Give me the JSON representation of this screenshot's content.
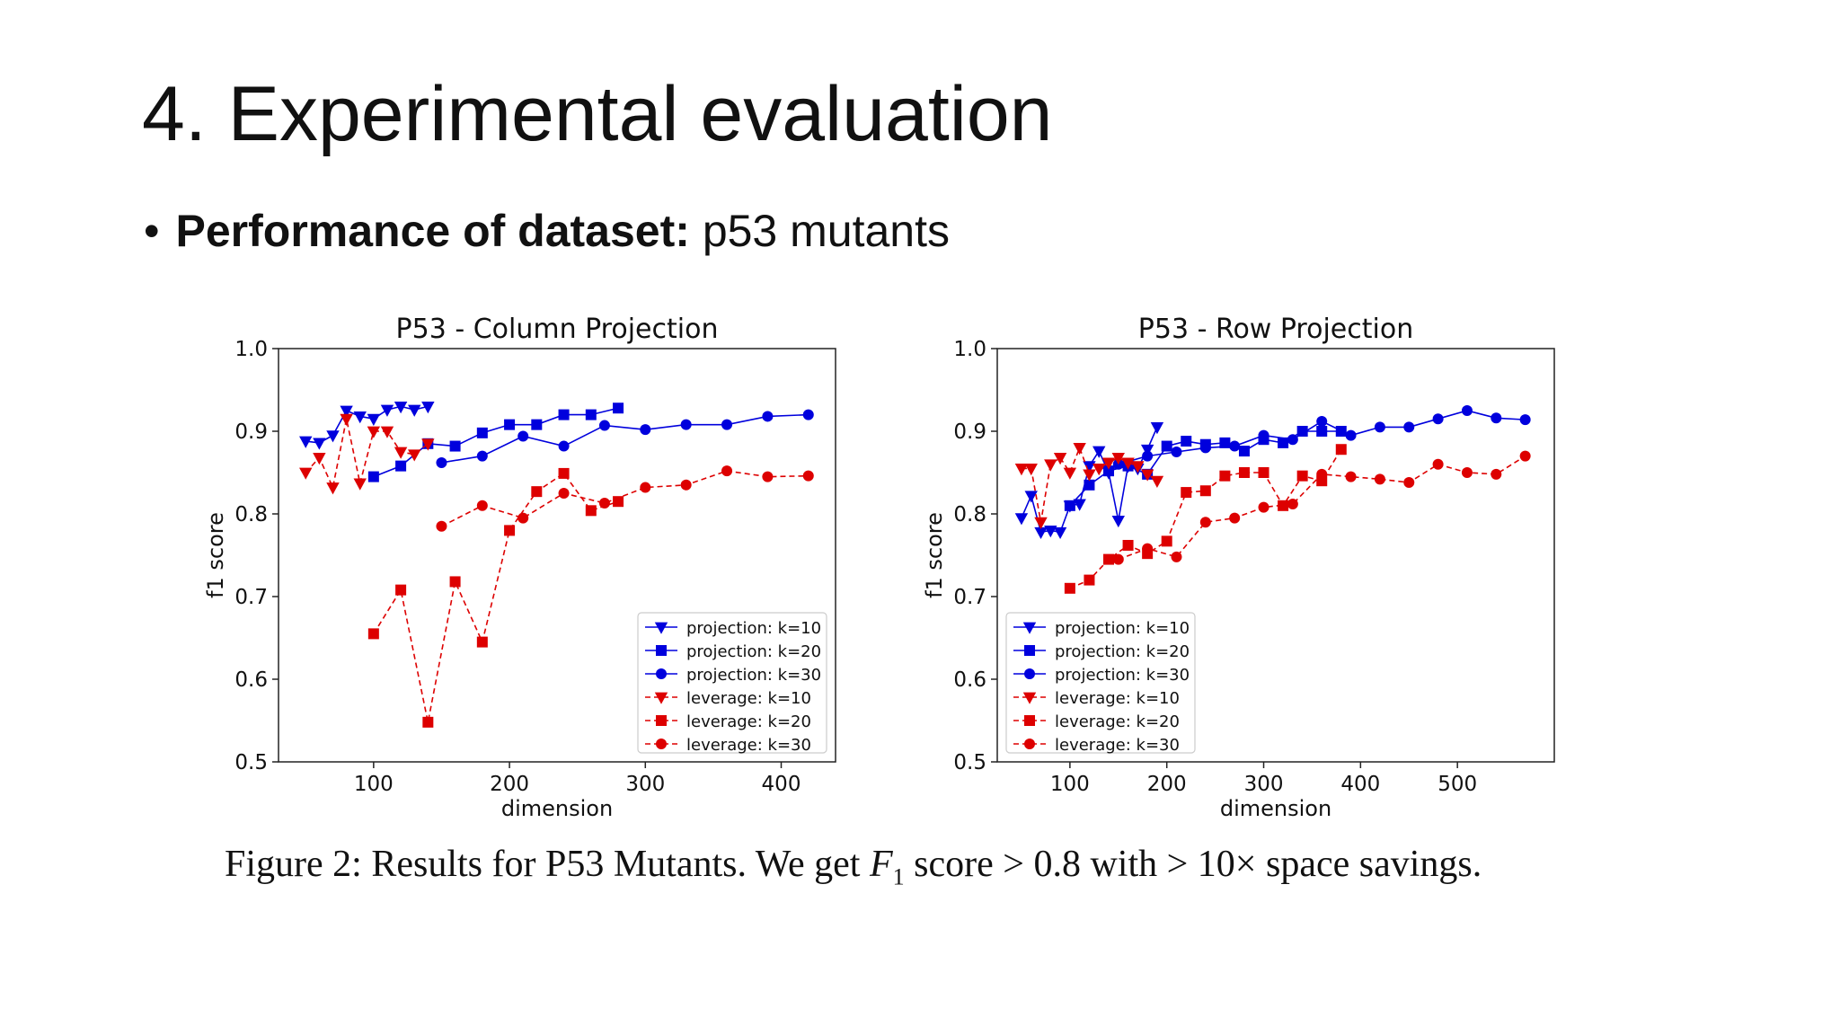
{
  "slide": {
    "title": "4. Experimental evaluation",
    "bullet_bold": "Performance of dataset:",
    "bullet_text": "p53 mutants"
  },
  "caption": {
    "lead": "Figure 2: Results for P53 Mutants. We get",
    "f_sym": "F",
    "f_sub": "1",
    "mid": "score > 0.8 with > 10× space savings."
  },
  "colors": {
    "projection": "#0000dd",
    "leverage": "#dd0000"
  },
  "chart_data": [
    {
      "type": "line",
      "title": "P53 - Column Projection",
      "xlabel": "dimension",
      "ylabel": "f1 score",
      "xlim": [
        30,
        440
      ],
      "ylim": [
        0.5,
        1.0
      ],
      "xticks": [
        100,
        200,
        300,
        400
      ],
      "yticks": [
        0.5,
        0.6,
        0.7,
        0.8,
        0.9,
        1.0
      ],
      "legend_position": "bottom-right",
      "series": [
        {
          "name": "projection: k=10",
          "marker": "triangle",
          "dashed": false,
          "color": "#0000dd",
          "x": [
            50,
            60,
            70,
            80,
            90,
            100,
            110,
            120,
            130,
            140
          ],
          "y": [
            0.888,
            0.886,
            0.895,
            0.925,
            0.918,
            0.915,
            0.926,
            0.93,
            0.926,
            0.93
          ]
        },
        {
          "name": "projection: k=20",
          "marker": "square",
          "dashed": false,
          "color": "#0000dd",
          "x": [
            100,
            120,
            140,
            160,
            180,
            200,
            220,
            240,
            260,
            280
          ],
          "y": [
            0.845,
            0.858,
            0.885,
            0.882,
            0.898,
            0.908,
            0.908,
            0.92,
            0.92,
            0.928
          ]
        },
        {
          "name": "projection: k=30",
          "marker": "circle",
          "dashed": false,
          "color": "#0000dd",
          "x": [
            150,
            180,
            210,
            240,
            270,
            300,
            330,
            360,
            390,
            420
          ],
          "y": [
            0.862,
            0.87,
            0.894,
            0.882,
            0.907,
            0.902,
            0.908,
            0.908,
            0.918,
            0.92
          ]
        },
        {
          "name": "leverage: k=10",
          "marker": "triangle",
          "dashed": true,
          "color": "#dd0000",
          "x": [
            50,
            60,
            70,
            80,
            90,
            100,
            110,
            120,
            130,
            140
          ],
          "y": [
            0.85,
            0.868,
            0.832,
            0.915,
            0.837,
            0.9,
            0.9,
            0.875,
            0.872,
            0.885
          ]
        },
        {
          "name": "leverage: k=20",
          "marker": "square",
          "dashed": true,
          "color": "#dd0000",
          "x": [
            100,
            120,
            140,
            160,
            180,
            200,
            220,
            240,
            260,
            280
          ],
          "y": [
            0.655,
            0.708,
            0.548,
            0.718,
            0.645,
            0.78,
            0.827,
            0.849,
            0.804,
            0.815
          ]
        },
        {
          "name": "leverage: k=30",
          "marker": "circle",
          "dashed": true,
          "color": "#dd0000",
          "x": [
            150,
            180,
            210,
            240,
            270,
            300,
            330,
            360,
            390,
            420
          ],
          "y": [
            0.785,
            0.81,
            0.795,
            0.825,
            0.813,
            0.832,
            0.835,
            0.852,
            0.845,
            0.846
          ]
        }
      ]
    },
    {
      "type": "line",
      "title": "P53 - Row Projection",
      "xlabel": "dimension",
      "ylabel": "f1 score",
      "xlim": [
        25,
        600
      ],
      "ylim": [
        0.5,
        1.0
      ],
      "xticks": [
        100,
        200,
        300,
        400,
        500
      ],
      "yticks": [
        0.5,
        0.6,
        0.7,
        0.8,
        0.9,
        1.0
      ],
      "legend_position": "bottom-left",
      "series": [
        {
          "name": "projection: k=10",
          "marker": "triangle",
          "dashed": false,
          "color": "#0000dd",
          "x": [
            50,
            60,
            70,
            80,
            90,
            100,
            110,
            120,
            130,
            140,
            150,
            160,
            170,
            180,
            190
          ],
          "y": [
            0.795,
            0.822,
            0.778,
            0.78,
            0.778,
            0.81,
            0.812,
            0.858,
            0.876,
            0.85,
            0.792,
            0.858,
            0.855,
            0.878,
            0.905
          ]
        },
        {
          "name": "projection: k=20",
          "marker": "square",
          "dashed": false,
          "color": "#0000dd",
          "x": [
            100,
            120,
            140,
            160,
            180,
            200,
            220,
            240,
            260,
            280,
            300,
            320,
            340,
            360,
            380
          ],
          "y": [
            0.81,
            0.835,
            0.852,
            0.858,
            0.848,
            0.882,
            0.888,
            0.884,
            0.886,
            0.876,
            0.89,
            0.886,
            0.9,
            0.9,
            0.9
          ]
        },
        {
          "name": "projection: k=30",
          "marker": "circle",
          "dashed": false,
          "color": "#0000dd",
          "x": [
            150,
            180,
            210,
            240,
            270,
            300,
            330,
            360,
            390,
            420,
            450,
            480,
            510,
            540,
            570
          ],
          "y": [
            0.86,
            0.87,
            0.875,
            0.88,
            0.882,
            0.895,
            0.89,
            0.912,
            0.895,
            0.905,
            0.905,
            0.915,
            0.925,
            0.916,
            0.914
          ]
        },
        {
          "name": "leverage: k=10",
          "marker": "triangle",
          "dashed": true,
          "color": "#dd0000",
          "x": [
            50,
            60,
            70,
            80,
            90,
            100,
            110,
            120,
            130,
            140,
            150,
            160,
            170,
            180,
            190
          ],
          "y": [
            0.855,
            0.855,
            0.79,
            0.86,
            0.868,
            0.85,
            0.88,
            0.848,
            0.855,
            0.862,
            0.868,
            0.862,
            0.858,
            0.848,
            0.84
          ]
        },
        {
          "name": "leverage: k=20",
          "marker": "square",
          "dashed": true,
          "color": "#dd0000",
          "x": [
            100,
            120,
            140,
            160,
            180,
            200,
            220,
            240,
            260,
            280,
            300,
            320,
            340,
            360,
            380
          ],
          "y": [
            0.71,
            0.72,
            0.745,
            0.762,
            0.752,
            0.767,
            0.826,
            0.828,
            0.846,
            0.85,
            0.85,
            0.81,
            0.846,
            0.84,
            0.878
          ]
        },
        {
          "name": "leverage: k=30",
          "marker": "circle",
          "dashed": true,
          "color": "#dd0000",
          "x": [
            150,
            180,
            210,
            240,
            270,
            300,
            330,
            360,
            390,
            420,
            450,
            480,
            510,
            540,
            570
          ],
          "y": [
            0.745,
            0.758,
            0.748,
            0.79,
            0.795,
            0.808,
            0.812,
            0.848,
            0.845,
            0.842,
            0.838,
            0.86,
            0.85,
            0.848,
            0.87
          ]
        }
      ]
    }
  ]
}
